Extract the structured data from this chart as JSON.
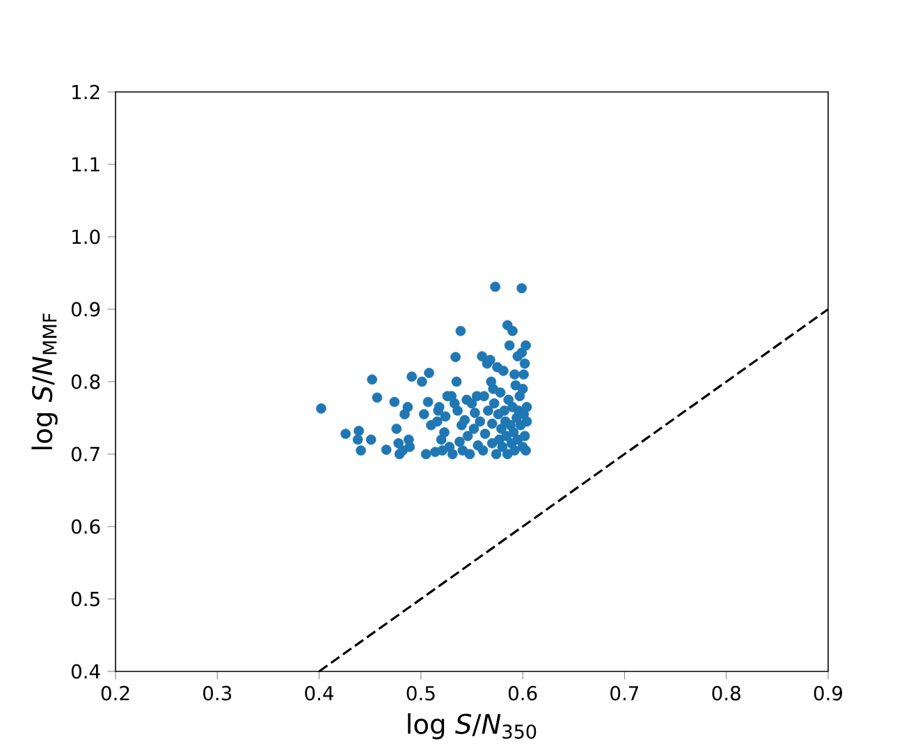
{
  "chart_data": {
    "type": "scatter",
    "xlabel": "log *S*/*N*$_{350}$",
    "ylabel": "log *S*/*N*$_{MMF}$",
    "xlim": [
      0.2,
      0.9
    ],
    "ylim": [
      0.4,
      1.2
    ],
    "xticks": [
      0.2,
      0.3,
      0.4,
      0.5,
      0.6,
      0.7,
      0.8,
      0.9
    ],
    "yticks": [
      0.4,
      0.5,
      0.6,
      0.7,
      0.8,
      0.9,
      {
        "value": 1.0,
        "label": "1.0"
      },
      1.1,
      1.2
    ],
    "grid": false,
    "series": [
      {
        "color": "#1f77b4",
        "x": [
          0.402,
          0.426,
          0.439,
          0.438,
          0.441,
          0.451,
          0.452,
          0.457,
          0.466,
          0.474,
          0.476,
          0.478,
          0.479,
          0.482,
          0.484,
          0.487,
          0.488,
          0.489,
          0.491,
          0.501,
          0.503,
          0.505,
          0.508,
          0.507,
          0.51,
          0.514,
          0.516,
          0.517,
          0.518,
          0.52,
          0.521,
          0.523,
          0.524,
          0.526,
          0.528,
          0.53,
          0.531,
          0.533,
          0.534,
          0.535,
          0.536,
          0.538,
          0.539,
          0.54,
          0.541,
          0.543,
          0.545,
          0.546,
          0.548,
          0.55,
          0.552,
          0.553,
          0.555,
          0.556,
          0.558,
          0.56,
          0.561,
          0.562,
          0.563,
          0.565,
          0.566,
          0.568,
          0.569,
          0.57,
          0.57,
          0.571,
          0.572,
          0.573,
          0.574,
          0.575,
          0.576,
          0.577,
          0.578,
          0.579,
          0.58,
          0.581,
          0.582,
          0.583,
          0.584,
          0.585,
          0.585,
          0.586,
          0.587,
          0.588,
          0.589,
          0.59,
          0.59,
          0.591,
          0.592,
          0.592,
          0.593,
          0.594,
          0.595,
          0.595,
          0.596,
          0.597,
          0.598,
          0.599,
          0.599,
          0.6,
          0.6,
          0.601,
          0.601,
          0.602,
          0.602,
          0.603,
          0.603,
          0.604,
          0.604
        ],
        "values": [
          0.763,
          0.728,
          0.732,
          0.72,
          0.705,
          0.72,
          0.803,
          0.778,
          0.706,
          0.772,
          0.735,
          0.715,
          0.7,
          0.705,
          0.755,
          0.765,
          0.72,
          0.71,
          0.807,
          0.8,
          0.755,
          0.7,
          0.812,
          0.772,
          0.74,
          0.703,
          0.745,
          0.76,
          0.765,
          0.72,
          0.705,
          0.73,
          0.752,
          0.78,
          0.71,
          0.78,
          0.7,
          0.77,
          0.834,
          0.8,
          0.76,
          0.717,
          0.87,
          0.74,
          0.705,
          0.747,
          0.775,
          0.725,
          0.7,
          0.77,
          0.735,
          0.757,
          0.78,
          0.712,
          0.745,
          0.835,
          0.705,
          0.78,
          0.728,
          0.825,
          0.76,
          0.83,
          0.8,
          0.742,
          0.715,
          0.79,
          0.77,
          0.931,
          0.7,
          0.82,
          0.755,
          0.72,
          0.785,
          0.735,
          0.71,
          0.815,
          0.76,
          0.745,
          0.725,
          0.878,
          0.7,
          0.775,
          0.85,
          0.74,
          0.715,
          0.87,
          0.765,
          0.73,
          0.81,
          0.705,
          0.795,
          0.75,
          0.835,
          0.72,
          0.76,
          0.78,
          0.74,
          0.929,
          0.84,
          0.71,
          0.79,
          0.81,
          0.755,
          0.825,
          0.725,
          0.85,
          0.705,
          0.745,
          0.765
        ]
      },
      {
        "type": "line",
        "color": "#000000",
        "line_style": "dashed",
        "marker": "none",
        "x": [
          0.4,
          0.9
        ],
        "values": [
          0.4,
          0.9
        ]
      }
    ]
  }
}
